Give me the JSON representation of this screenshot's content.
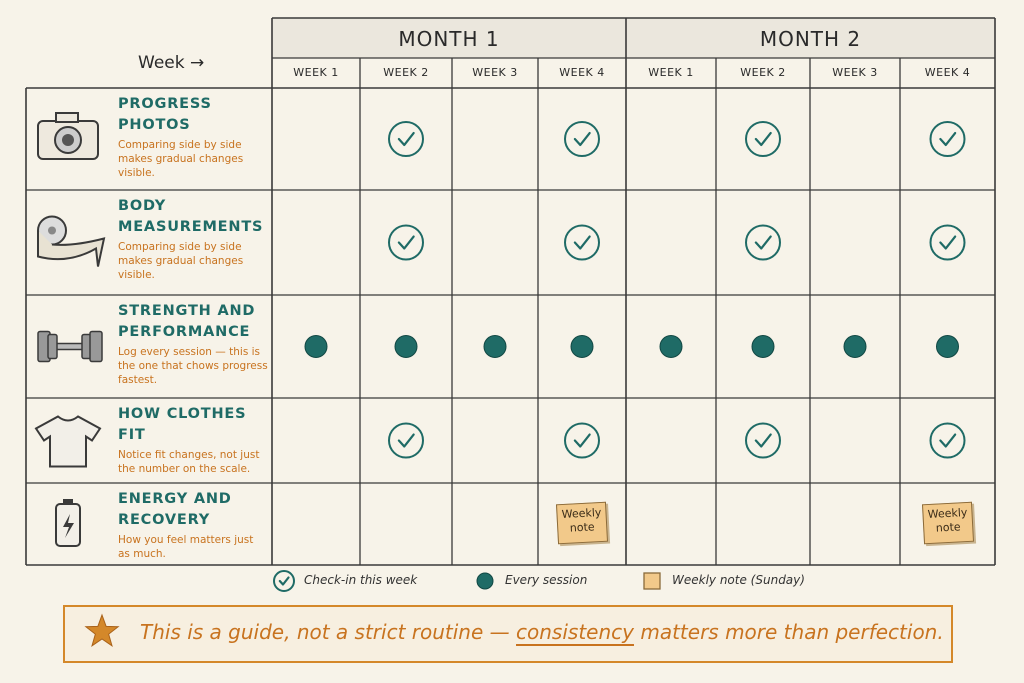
{
  "header": {
    "axis_label": "Week →",
    "months": [
      {
        "label": "MONTH 1",
        "weeks": [
          "WEEK 1",
          "WEEK 2",
          "WEEK 3",
          "WEEK 4"
        ]
      },
      {
        "label": "MONTH 2",
        "weeks": [
          "WEEK 1",
          "WEEK 2",
          "WEEK 3",
          "WEEK 4"
        ]
      }
    ]
  },
  "rows": [
    {
      "title": "PROGRESS PHOTOS",
      "description": "Comparing side by side makes gradual changes visible.",
      "cells": [
        null,
        "check",
        null,
        "check",
        null,
        "check",
        null,
        "check"
      ]
    },
    {
      "title": "BODY MEASUREMENTS",
      "description": "Comparing side by side makes gradual changes visible.",
      "cells": [
        null,
        "check",
        null,
        "check",
        null,
        "check",
        null,
        "check"
      ]
    },
    {
      "title": "STRENGTH AND PERFORMANCE",
      "description": "Log every session — this is the one that chows progress fastest.",
      "cells": [
        "dot",
        "dot",
        "dot",
        "dot",
        "dot",
        "dot",
        "dot",
        "dot"
      ]
    },
    {
      "title": "HOW CLOTHES FIT",
      "description": "Notice fit changes, not just the number on the scale.",
      "cells": [
        null,
        "check",
        null,
        "check",
        null,
        "check",
        null,
        "check"
      ]
    },
    {
      "title": "ENERGY AND RECOVERY",
      "description": "How you feel matters just as much.",
      "cells": [
        null,
        null,
        null,
        {
          "note": "Weekly note"
        },
        null,
        null,
        null,
        {
          "note": "Weekly note"
        }
      ]
    }
  ],
  "legend": [
    {
      "marker": "check",
      "label": "Check-in this week"
    },
    {
      "marker": "dot",
      "label": "Every session"
    },
    {
      "marker": "note",
      "label": "Weekly note (Sunday)"
    }
  ],
  "footer": {
    "before": "This is a guide, not a strict routine — ",
    "emphasis": "consistency",
    "after": " matters more than perfection."
  }
}
